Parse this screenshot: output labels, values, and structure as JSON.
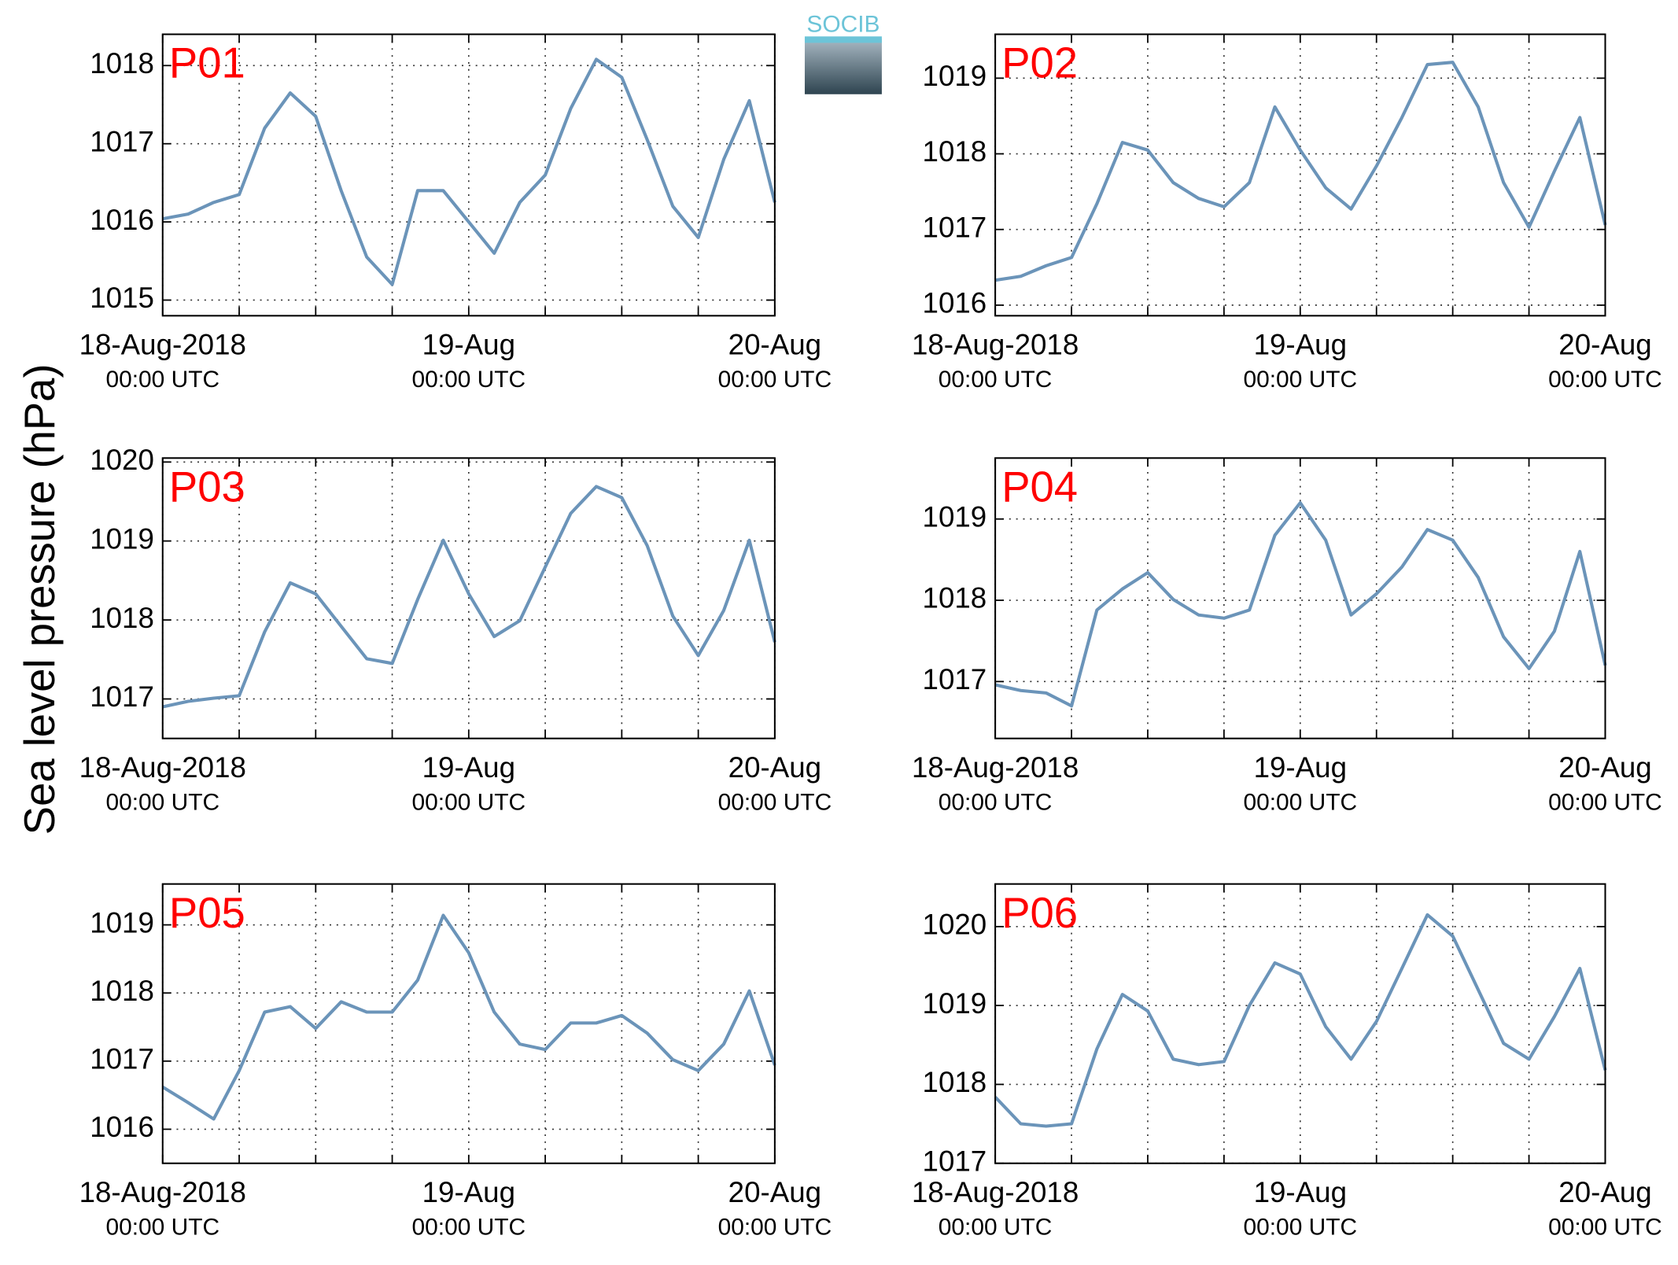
{
  "ylabel": "Sea level pressure (hPa)",
  "logo": "SOCIB",
  "chart_data": [
    {
      "type": "line",
      "title": "P01",
      "xlim": [
        "2018-08-18T00:00",
        "2018-08-20T00:00"
      ],
      "ylim": [
        1014.8,
        1018.4
      ],
      "yticks": [
        1015,
        1016,
        1017,
        1018
      ],
      "grid": true,
      "xticks": [
        {
          "value": "2018-08-18T00:00",
          "label": [
            "18-Aug-2018",
            "00:00 UTC"
          ]
        },
        {
          "value": "2018-08-18T06:00",
          "label": null
        },
        {
          "value": "2018-08-18T12:00",
          "label": null
        },
        {
          "value": "2018-08-18T18:00",
          "label": null
        },
        {
          "value": "2018-08-19T00:00",
          "label": [
            "19-Aug",
            "00:00 UTC"
          ]
        },
        {
          "value": "2018-08-19T06:00",
          "label": null
        },
        {
          "value": "2018-08-19T12:00",
          "label": null
        },
        {
          "value": "2018-08-19T18:00",
          "label": null
        },
        {
          "value": "2018-08-20T00:00",
          "label": [
            "20-Aug",
            "00:00 UTC"
          ]
        }
      ],
      "x": [
        "2018-08-18T00:00",
        "2018-08-18T02:00",
        "2018-08-18T04:00",
        "2018-08-18T06:00",
        "2018-08-18T08:00",
        "2018-08-18T10:00",
        "2018-08-18T12:00",
        "2018-08-18T14:00",
        "2018-08-18T16:00",
        "2018-08-18T18:00",
        "2018-08-18T20:00",
        "2018-08-18T22:00",
        "2018-08-19T00:00",
        "2018-08-19T02:00",
        "2018-08-19T04:00",
        "2018-08-19T06:00",
        "2018-08-19T08:00",
        "2018-08-19T10:00",
        "2018-08-19T12:00",
        "2018-08-19T14:00",
        "2018-08-19T16:00",
        "2018-08-19T18:00",
        "2018-08-19T20:00",
        "2018-08-19T22:00",
        "2018-08-20T00:00"
      ],
      "series": [
        {
          "color": "#6b94b9",
          "values": [
            1016.04,
            1016.1,
            1016.25,
            1016.35,
            1017.2,
            1017.65,
            1017.35,
            1016.4,
            1015.55,
            1015.2,
            1016.4,
            1016.4,
            1016.0,
            1015.6,
            1016.25,
            1016.6,
            1017.45,
            1018.08,
            1017.85,
            1017.05,
            1016.2,
            1015.8,
            1016.8,
            1017.55,
            1016.25
          ]
        }
      ]
    },
    {
      "type": "line",
      "title": "P02",
      "xlim": [
        "2018-08-18T00:00",
        "2018-08-20T00:00"
      ],
      "ylim": [
        1015.86,
        1019.58
      ],
      "yticks": [
        1016,
        1017,
        1018,
        1019
      ],
      "grid": true,
      "xticks": [
        {
          "value": "2018-08-18T00:00",
          "label": [
            "18-Aug-2018",
            "00:00 UTC"
          ]
        },
        {
          "value": "2018-08-18T06:00",
          "label": null
        },
        {
          "value": "2018-08-18T12:00",
          "label": null
        },
        {
          "value": "2018-08-18T18:00",
          "label": null
        },
        {
          "value": "2018-08-19T00:00",
          "label": [
            "19-Aug",
            "00:00 UTC"
          ]
        },
        {
          "value": "2018-08-19T06:00",
          "label": null
        },
        {
          "value": "2018-08-19T12:00",
          "label": null
        },
        {
          "value": "2018-08-19T18:00",
          "label": null
        },
        {
          "value": "2018-08-20T00:00",
          "label": [
            "20-Aug",
            "00:00 UTC"
          ]
        }
      ],
      "x": [
        "2018-08-18T00:00",
        "2018-08-18T02:00",
        "2018-08-18T04:00",
        "2018-08-18T06:00",
        "2018-08-18T08:00",
        "2018-08-18T10:00",
        "2018-08-18T12:00",
        "2018-08-18T14:00",
        "2018-08-18T16:00",
        "2018-08-18T18:00",
        "2018-08-18T20:00",
        "2018-08-18T22:00",
        "2018-08-19T00:00",
        "2018-08-19T02:00",
        "2018-08-19T04:00",
        "2018-08-19T06:00",
        "2018-08-19T08:00",
        "2018-08-19T10:00",
        "2018-08-19T12:00",
        "2018-08-19T14:00",
        "2018-08-19T16:00",
        "2018-08-19T18:00",
        "2018-08-19T20:00",
        "2018-08-19T22:00",
        "2018-08-20T00:00"
      ],
      "series": [
        {
          "color": "#6b94b9",
          "values": [
            1016.33,
            1016.38,
            1016.52,
            1016.63,
            1017.34,
            1018.15,
            1018.05,
            1017.62,
            1017.41,
            1017.3,
            1017.62,
            1018.62,
            1018.05,
            1017.55,
            1017.27,
            1017.84,
            1018.48,
            1019.18,
            1019.21,
            1018.62,
            1017.62,
            1017.03,
            1017.77,
            1018.48,
            1017.06
          ]
        }
      ]
    },
    {
      "type": "line",
      "title": "P03",
      "xlim": [
        "2018-08-18T00:00",
        "2018-08-20T00:00"
      ],
      "ylim": [
        1016.5,
        1020.05
      ],
      "yticks": [
        1017,
        1018,
        1019,
        1020
      ],
      "grid": true,
      "xticks": [
        {
          "value": "2018-08-18T00:00",
          "label": [
            "18-Aug-2018",
            "00:00 UTC"
          ]
        },
        {
          "value": "2018-08-18T06:00",
          "label": null
        },
        {
          "value": "2018-08-18T12:00",
          "label": null
        },
        {
          "value": "2018-08-18T18:00",
          "label": null
        },
        {
          "value": "2018-08-19T00:00",
          "label": [
            "19-Aug",
            "00:00 UTC"
          ]
        },
        {
          "value": "2018-08-19T06:00",
          "label": null
        },
        {
          "value": "2018-08-19T12:00",
          "label": null
        },
        {
          "value": "2018-08-19T18:00",
          "label": null
        },
        {
          "value": "2018-08-20T00:00",
          "label": [
            "20-Aug",
            "00:00 UTC"
          ]
        }
      ],
      "x": [
        "2018-08-18T00:00",
        "2018-08-18T02:00",
        "2018-08-18T04:00",
        "2018-08-18T06:00",
        "2018-08-18T08:00",
        "2018-08-18T10:00",
        "2018-08-18T12:00",
        "2018-08-18T14:00",
        "2018-08-18T16:00",
        "2018-08-18T18:00",
        "2018-08-18T20:00",
        "2018-08-18T22:00",
        "2018-08-19T00:00",
        "2018-08-19T02:00",
        "2018-08-19T04:00",
        "2018-08-19T06:00",
        "2018-08-19T08:00",
        "2018-08-19T10:00",
        "2018-08-19T12:00",
        "2018-08-19T14:00",
        "2018-08-19T16:00",
        "2018-08-19T18:00",
        "2018-08-19T20:00",
        "2018-08-19T22:00",
        "2018-08-20T00:00"
      ],
      "series": [
        {
          "color": "#6b94b9",
          "values": [
            1016.9,
            1016.97,
            1017.01,
            1017.04,
            1017.85,
            1018.47,
            1018.33,
            1017.92,
            1017.51,
            1017.45,
            1018.26,
            1019.01,
            1018.33,
            1017.79,
            1017.99,
            1018.67,
            1019.35,
            1019.69,
            1019.55,
            1018.94,
            1018.05,
            1017.55,
            1018.12,
            1019.01,
            1017.72
          ]
        }
      ]
    },
    {
      "type": "line",
      "title": "P04",
      "xlim": [
        "2018-08-18T00:00",
        "2018-08-20T00:00"
      ],
      "ylim": [
        1016.3,
        1019.75
      ],
      "yticks": [
        1017,
        1018,
        1019
      ],
      "grid": true,
      "xticks": [
        {
          "value": "2018-08-18T00:00",
          "label": [
            "18-Aug-2018",
            "00:00 UTC"
          ]
        },
        {
          "value": "2018-08-18T06:00",
          "label": null
        },
        {
          "value": "2018-08-18T12:00",
          "label": null
        },
        {
          "value": "2018-08-18T18:00",
          "label": null
        },
        {
          "value": "2018-08-19T00:00",
          "label": [
            "19-Aug",
            "00:00 UTC"
          ]
        },
        {
          "value": "2018-08-19T06:00",
          "label": null
        },
        {
          "value": "2018-08-19T12:00",
          "label": null
        },
        {
          "value": "2018-08-19T18:00",
          "label": null
        },
        {
          "value": "2018-08-20T00:00",
          "label": [
            "20-Aug",
            "00:00 UTC"
          ]
        }
      ],
      "x": [
        "2018-08-18T00:00",
        "2018-08-18T02:00",
        "2018-08-18T04:00",
        "2018-08-18T06:00",
        "2018-08-18T08:00",
        "2018-08-18T10:00",
        "2018-08-18T12:00",
        "2018-08-18T14:00",
        "2018-08-18T16:00",
        "2018-08-18T18:00",
        "2018-08-18T20:00",
        "2018-08-18T22:00",
        "2018-08-19T00:00",
        "2018-08-19T02:00",
        "2018-08-19T04:00",
        "2018-08-19T06:00",
        "2018-08-19T08:00",
        "2018-08-19T10:00",
        "2018-08-19T12:00",
        "2018-08-19T14:00",
        "2018-08-19T16:00",
        "2018-08-19T18:00",
        "2018-08-19T20:00",
        "2018-08-19T22:00",
        "2018-08-20T00:00"
      ],
      "series": [
        {
          "color": "#6b94b9",
          "values": [
            1016.96,
            1016.89,
            1016.86,
            1016.7,
            1017.88,
            1018.14,
            1018.34,
            1018.01,
            1017.82,
            1017.78,
            1017.88,
            1018.8,
            1019.2,
            1018.74,
            1017.82,
            1018.08,
            1018.41,
            1018.87,
            1018.74,
            1018.28,
            1017.55,
            1017.16,
            1017.62,
            1018.6,
            1017.2
          ]
        }
      ]
    },
    {
      "type": "line",
      "title": "P05",
      "xlim": [
        "2018-08-18T00:00",
        "2018-08-20T00:00"
      ],
      "ylim": [
        1015.5,
        1019.6
      ],
      "yticks": [
        1016,
        1017,
        1018,
        1019
      ],
      "grid": true,
      "xticks": [
        {
          "value": "2018-08-18T00:00",
          "label": [
            "18-Aug-2018",
            "00:00 UTC"
          ]
        },
        {
          "value": "2018-08-18T06:00",
          "label": null
        },
        {
          "value": "2018-08-18T12:00",
          "label": null
        },
        {
          "value": "2018-08-18T18:00",
          "label": null
        },
        {
          "value": "2018-08-19T00:00",
          "label": [
            "19-Aug",
            "00:00 UTC"
          ]
        },
        {
          "value": "2018-08-19T06:00",
          "label": null
        },
        {
          "value": "2018-08-19T12:00",
          "label": null
        },
        {
          "value": "2018-08-19T18:00",
          "label": null
        },
        {
          "value": "2018-08-20T00:00",
          "label": [
            "20-Aug",
            "00:00 UTC"
          ]
        }
      ],
      "x": [
        "2018-08-18T00:00",
        "2018-08-18T02:00",
        "2018-08-18T04:00",
        "2018-08-18T06:00",
        "2018-08-18T08:00",
        "2018-08-18T10:00",
        "2018-08-18T12:00",
        "2018-08-18T14:00",
        "2018-08-18T16:00",
        "2018-08-18T18:00",
        "2018-08-18T20:00",
        "2018-08-18T22:00",
        "2018-08-19T00:00",
        "2018-08-19T02:00",
        "2018-08-19T04:00",
        "2018-08-19T06:00",
        "2018-08-19T08:00",
        "2018-08-19T10:00",
        "2018-08-19T12:00",
        "2018-08-19T14:00",
        "2018-08-19T16:00",
        "2018-08-19T18:00",
        "2018-08-19T20:00",
        "2018-08-19T22:00",
        "2018-08-20T00:00"
      ],
      "series": [
        {
          "color": "#6b94b9",
          "values": [
            1016.62,
            1016.39,
            1016.15,
            1016.86,
            1017.72,
            1017.8,
            1017.48,
            1017.87,
            1017.72,
            1017.72,
            1018.19,
            1019.14,
            1018.59,
            1017.72,
            1017.25,
            1017.17,
            1017.56,
            1017.56,
            1017.67,
            1017.41,
            1017.02,
            1016.86,
            1017.25,
            1018.03,
            1016.94
          ]
        }
      ]
    },
    {
      "type": "line",
      "title": "P06",
      "xlim": [
        "2018-08-18T00:00",
        "2018-08-20T00:00"
      ],
      "ylim": [
        1017,
        1020.54
      ],
      "yticks": [
        1017,
        1018,
        1019,
        1020
      ],
      "grid": true,
      "xticks": [
        {
          "value": "2018-08-18T00:00",
          "label": [
            "18-Aug-2018",
            "00:00 UTC"
          ]
        },
        {
          "value": "2018-08-18T06:00",
          "label": null
        },
        {
          "value": "2018-08-18T12:00",
          "label": null
        },
        {
          "value": "2018-08-18T18:00",
          "label": null
        },
        {
          "value": "2018-08-19T00:00",
          "label": [
            "19-Aug",
            "00:00 UTC"
          ]
        },
        {
          "value": "2018-08-19T06:00",
          "label": null
        },
        {
          "value": "2018-08-19T12:00",
          "label": null
        },
        {
          "value": "2018-08-19T18:00",
          "label": null
        },
        {
          "value": "2018-08-20T00:00",
          "label": [
            "20-Aug",
            "00:00 UTC"
          ]
        }
      ],
      "x": [
        "2018-08-18T00:00",
        "2018-08-18T02:00",
        "2018-08-18T04:00",
        "2018-08-18T06:00",
        "2018-08-18T08:00",
        "2018-08-18T10:00",
        "2018-08-18T12:00",
        "2018-08-18T14:00",
        "2018-08-18T16:00",
        "2018-08-18T18:00",
        "2018-08-18T20:00",
        "2018-08-18T22:00",
        "2018-08-19T00:00",
        "2018-08-19T02:00",
        "2018-08-19T04:00",
        "2018-08-19T06:00",
        "2018-08-19T08:00",
        "2018-08-19T10:00",
        "2018-08-19T12:00",
        "2018-08-19T14:00",
        "2018-08-19T16:00",
        "2018-08-19T18:00",
        "2018-08-19T20:00",
        "2018-08-19T22:00",
        "2018-08-20T00:00"
      ],
      "series": [
        {
          "color": "#6b94b9",
          "values": [
            1017.84,
            1017.5,
            1017.47,
            1017.5,
            1018.45,
            1019.14,
            1018.93,
            1018.32,
            1018.25,
            1018.29,
            1019.0,
            1019.54,
            1019.4,
            1018.73,
            1018.32,
            1018.8,
            1019.47,
            1020.15,
            1019.88,
            1019.2,
            1018.52,
            1018.32,
            1018.86,
            1019.47,
            1018.18
          ]
        }
      ]
    }
  ]
}
